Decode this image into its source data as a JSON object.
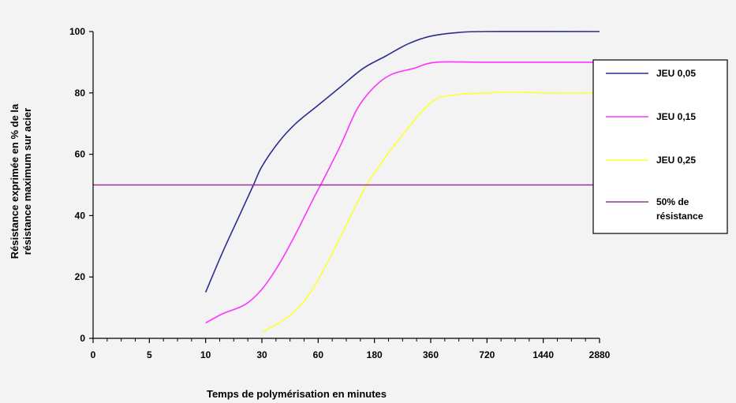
{
  "chart_data": {
    "type": "line",
    "title": "",
    "xlabel": "Temps de polymérisation en minutes",
    "ylabel_lines": [
      "Résistance exprimée en % de la",
      "résistance maximum sur acier"
    ],
    "categories": [
      "0",
      "5",
      "10",
      "30",
      "60",
      "180",
      "360",
      "720",
      "1440",
      "2880"
    ],
    "y_ticks": [
      "0",
      "20",
      "40",
      "60",
      "80",
      "100"
    ],
    "ylim": [
      0,
      100
    ],
    "grid": false,
    "legend_position": "right",
    "series": [
      {
        "name": "JEU 0,05",
        "color": "#2b2d8f",
        "points": [
          [
            2,
            15
          ],
          [
            2.3,
            28
          ],
          [
            2.6,
            40
          ],
          [
            2.85,
            50
          ],
          [
            3,
            56
          ],
          [
            3.3,
            64
          ],
          [
            3.6,
            70
          ],
          [
            4,
            76
          ],
          [
            4.4,
            82
          ],
          [
            4.8,
            88
          ],
          [
            5.2,
            92
          ],
          [
            5.6,
            96
          ],
          [
            6,
            98.5
          ],
          [
            6.5,
            99.7
          ],
          [
            7,
            100
          ],
          [
            9,
            100
          ]
        ]
      },
      {
        "name": "JEU 0,15",
        "color": "#ff33ff",
        "points": [
          [
            2,
            5
          ],
          [
            2.3,
            8
          ],
          [
            2.7,
            11
          ],
          [
            3,
            16
          ],
          [
            3.3,
            24
          ],
          [
            3.6,
            34
          ],
          [
            3.9,
            45
          ],
          [
            4.1,
            52
          ],
          [
            4.4,
            63
          ],
          [
            4.7,
            75
          ],
          [
            5,
            82
          ],
          [
            5.3,
            86
          ],
          [
            5.7,
            88
          ],
          [
            6.1,
            90
          ],
          [
            7,
            90
          ],
          [
            9,
            90
          ]
        ]
      },
      {
        "name": "JEU 0,25",
        "color": "#ffff33",
        "points": [
          [
            3,
            2
          ],
          [
            3.3,
            5
          ],
          [
            3.6,
            9
          ],
          [
            3.9,
            16
          ],
          [
            4.2,
            26
          ],
          [
            4.5,
            37
          ],
          [
            4.8,
            48
          ],
          [
            5,
            54
          ],
          [
            5.4,
            64
          ],
          [
            5.8,
            73
          ],
          [
            6.1,
            78
          ],
          [
            6.5,
            79.5
          ],
          [
            7,
            80
          ],
          [
            7.5,
            80.3
          ],
          [
            8,
            80
          ],
          [
            9,
            80
          ]
        ]
      },
      {
        "name": "50% de\nrésistance",
        "color": "#993399",
        "points": [
          [
            0,
            50
          ],
          [
            9,
            50
          ]
        ]
      }
    ]
  },
  "colors": {
    "background": "#f3f3f3",
    "axis": "#000000",
    "legend_border": "#000000",
    "legend_bg": "#ffffff"
  }
}
